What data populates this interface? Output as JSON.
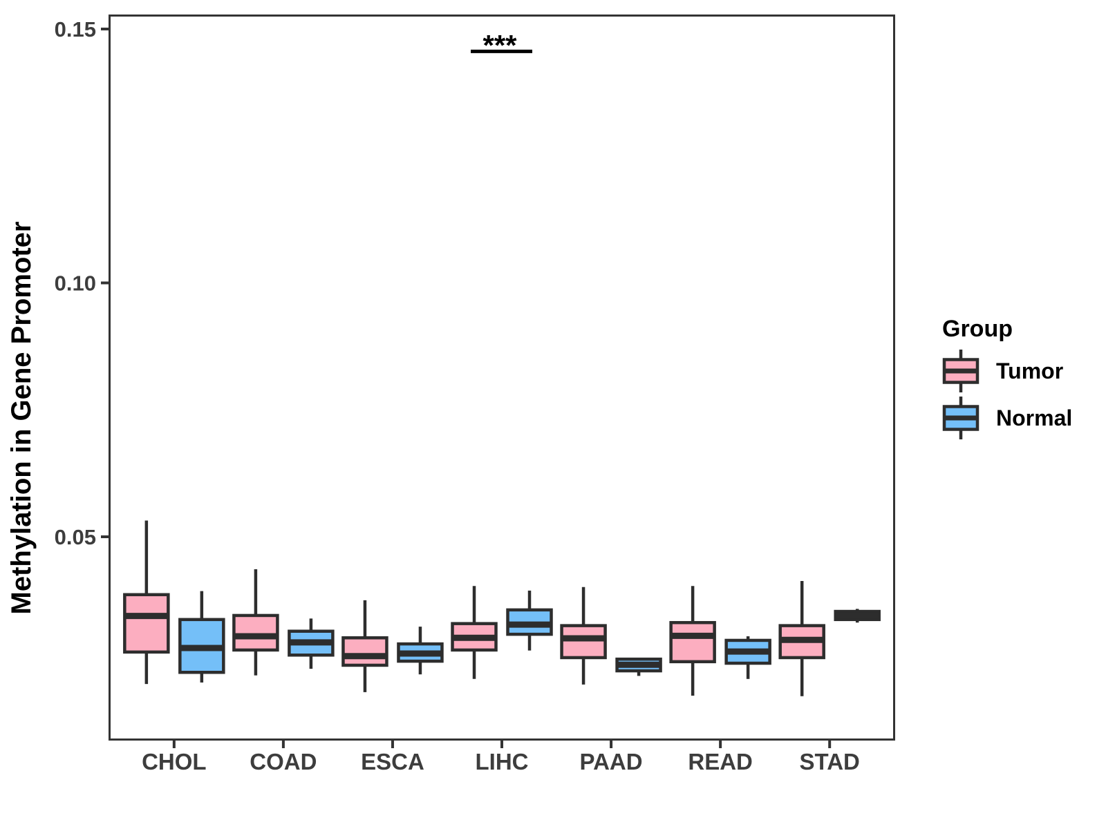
{
  "chart_data": {
    "type": "boxplot",
    "title": "",
    "xlabel": "",
    "ylabel": "Methylation in Gene Promoter",
    "categories": [
      "CHOL",
      "COAD",
      "ESCA",
      "LIHC",
      "PAAD",
      "READ",
      "STAD"
    ],
    "y_ticks": {
      "values": [
        0.05,
        0.1,
        0.15
      ],
      "labels": [
        "0.05",
        "0.10",
        "0.15"
      ]
    },
    "ylim": [
      0.01,
      0.153
    ],
    "grid": "off",
    "legend": {
      "title": "Group",
      "position": "right",
      "entries": [
        "Tumor",
        "Normal"
      ]
    },
    "annotation": {
      "text": "***",
      "category": "LIHC",
      "line_y": 0.1456
    },
    "box_outline_color": "#2D2D2D",
    "series": [
      {
        "name": "Tumor",
        "color": "#FCAEC0",
        "boxes": [
          {
            "category": "CHOL",
            "low": 0.021,
            "q1": 0.0273,
            "median": 0.0344,
            "q3": 0.0386,
            "high": 0.0532
          },
          {
            "category": "COAD",
            "low": 0.0227,
            "q1": 0.0277,
            "median": 0.0304,
            "q3": 0.0345,
            "high": 0.0436
          },
          {
            "category": "ESCA",
            "low": 0.0194,
            "q1": 0.0247,
            "median": 0.0265,
            "q3": 0.0301,
            "high": 0.0375
          },
          {
            "category": "LIHC",
            "low": 0.022,
            "q1": 0.0277,
            "median": 0.0301,
            "q3": 0.0329,
            "high": 0.0403
          },
          {
            "category": "PAAD",
            "low": 0.0209,
            "q1": 0.0262,
            "median": 0.03,
            "q3": 0.0325,
            "high": 0.0401
          },
          {
            "category": "READ",
            "low": 0.0187,
            "q1": 0.0254,
            "median": 0.0305,
            "q3": 0.0331,
            "high": 0.0403
          },
          {
            "category": "STAD",
            "low": 0.0186,
            "q1": 0.0262,
            "median": 0.0297,
            "q3": 0.0325,
            "high": 0.0413
          }
        ]
      },
      {
        "name": "Normal",
        "color": "#74BFF8",
        "boxes": [
          {
            "category": "CHOL",
            "low": 0.0213,
            "q1": 0.0233,
            "median": 0.0281,
            "q3": 0.0337,
            "high": 0.0393
          },
          {
            "category": "COAD",
            "low": 0.024,
            "q1": 0.0267,
            "median": 0.0292,
            "q3": 0.0314,
            "high": 0.0339
          },
          {
            "category": "ESCA",
            "low": 0.0229,
            "q1": 0.0255,
            "median": 0.027,
            "q3": 0.0289,
            "high": 0.0323
          },
          {
            "category": "LIHC",
            "low": 0.0276,
            "q1": 0.0308,
            "median": 0.0327,
            "q3": 0.0356,
            "high": 0.0394
          },
          {
            "category": "PAAD",
            "low": 0.0226,
            "q1": 0.0236,
            "median": 0.0248,
            "q3": 0.0259,
            "high": 0.0259
          },
          {
            "category": "READ",
            "low": 0.022,
            "q1": 0.0251,
            "median": 0.0274,
            "q3": 0.0296,
            "high": 0.0304
          },
          {
            "category": "STAD",
            "low": 0.0331,
            "q1": 0.0337,
            "median": 0.0345,
            "q3": 0.0353,
            "high": 0.0358
          }
        ]
      }
    ]
  }
}
